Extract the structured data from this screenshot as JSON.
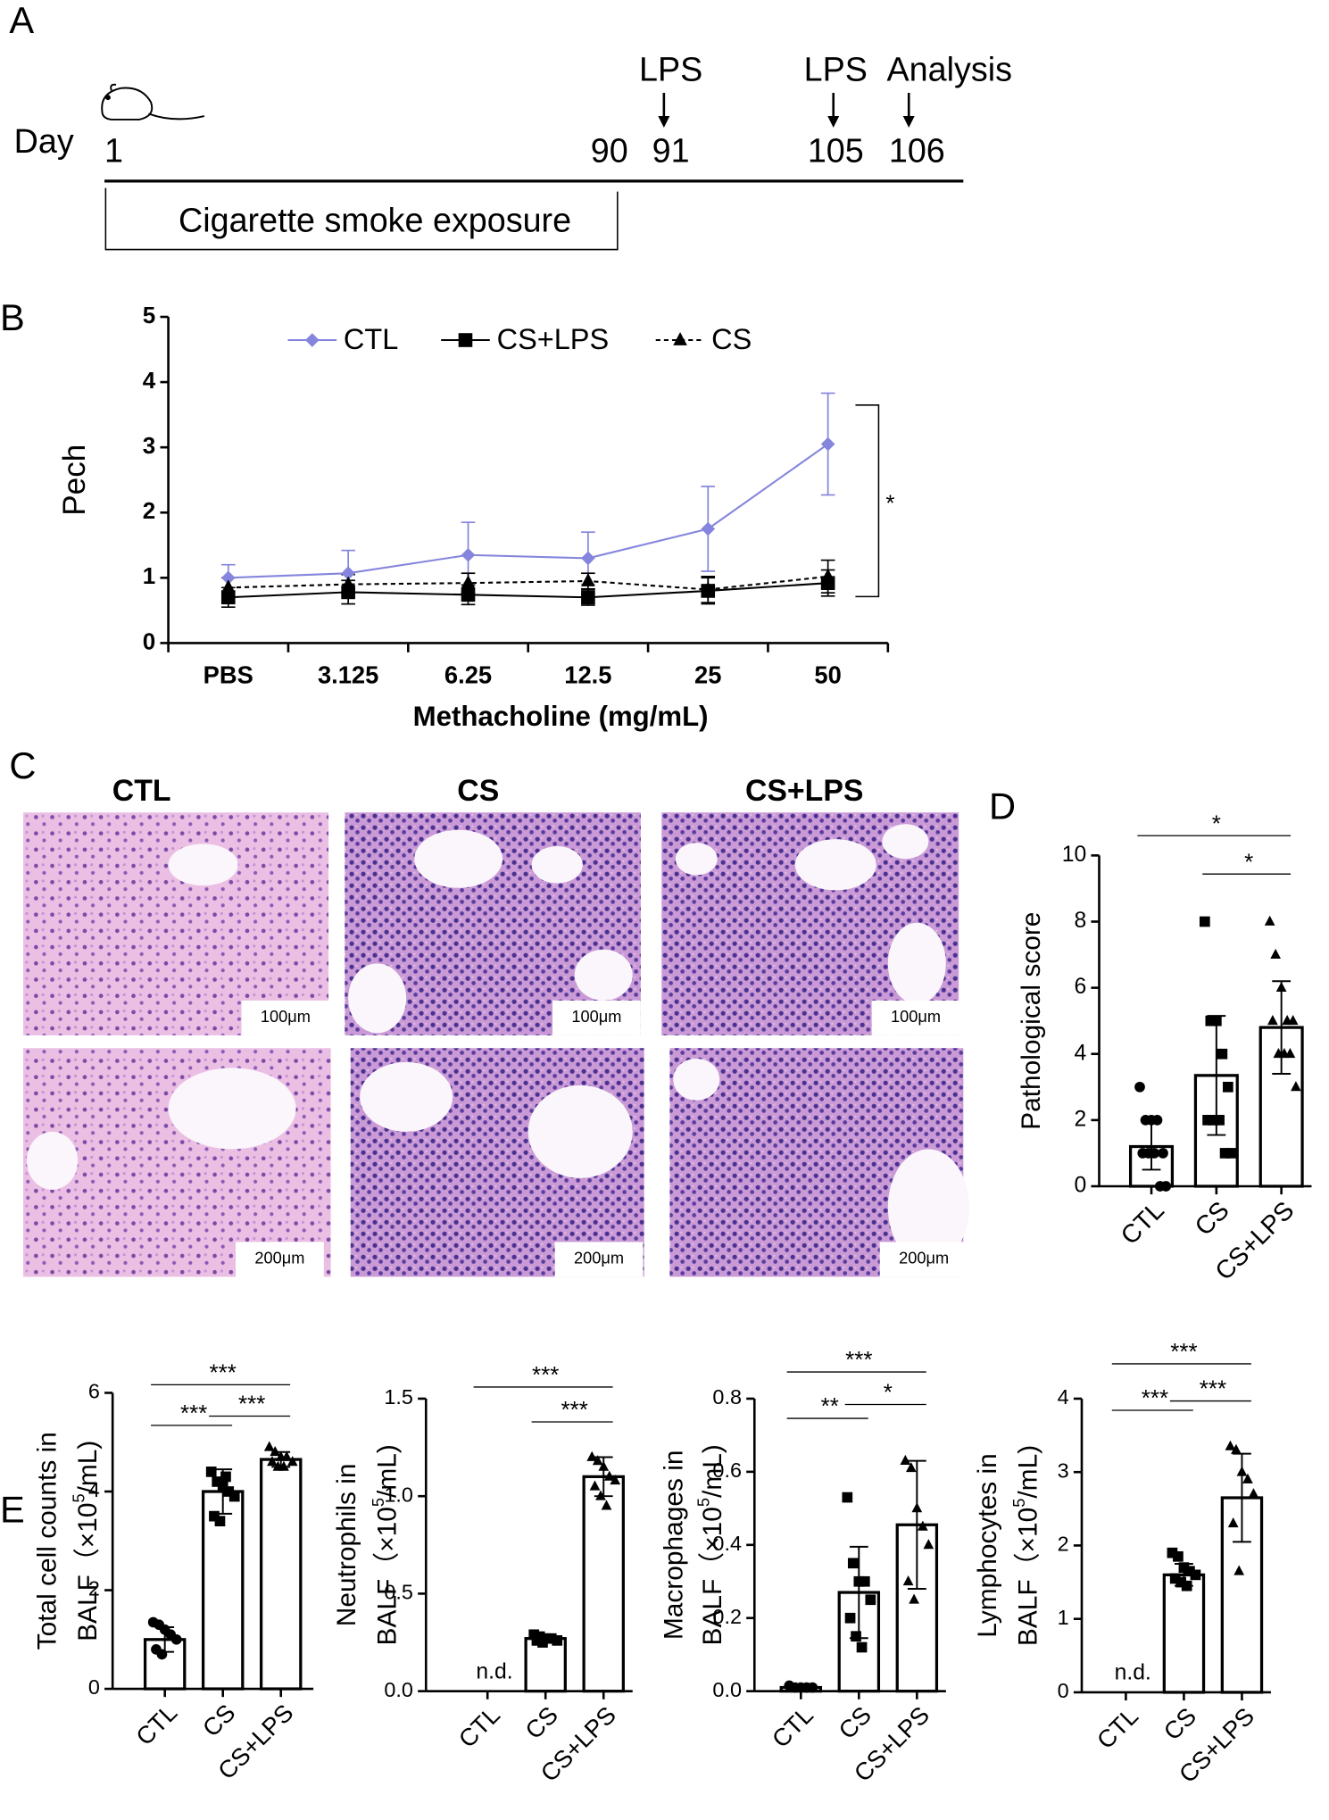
{
  "panel_labels": [
    "A",
    "B",
    "C",
    "D",
    "E"
  ],
  "timeline": {
    "label": "Day",
    "days": [
      "1",
      "90",
      "91",
      "105",
      "106"
    ],
    "events": [
      "LPS",
      "LPS",
      "Analysis"
    ],
    "exposure": "Cigarette smoke exposure"
  },
  "histology": {
    "columns": [
      "CTL",
      "CS",
      "CS+LPS"
    ],
    "scale_bars": [
      "100μm",
      "100μm",
      "100μm",
      "200μm",
      "200μm",
      "200μm"
    ]
  },
  "chart_data": [
    {
      "type": "line",
      "categories": [
        "PBS",
        "3.125",
        "6.25",
        "12.5",
        "25",
        "50"
      ],
      "xlabel": "Methacholine  (mg/mL)",
      "ylabel": "Pech",
      "ylim": [
        0,
        5
      ],
      "yticks": [
        0,
        1,
        2,
        3,
        4,
        5
      ],
      "annotations": [
        "*"
      ],
      "series": [
        {
          "name": "CTL",
          "color": "#8585dd",
          "marker": "diamond",
          "linestyle": "solid",
          "values": [
            1.0,
            1.07,
            1.35,
            1.3,
            1.75,
            3.05
          ],
          "errors": [
            0.2,
            0.35,
            0.5,
            0.4,
            0.65,
            0.78
          ]
        },
        {
          "name": "CS+LPS",
          "color": "#000000",
          "marker": "square",
          "linestyle": "solid",
          "values": [
            0.7,
            0.78,
            0.74,
            0.7,
            0.8,
            0.92
          ],
          "errors": [
            0.15,
            0.18,
            0.15,
            0.12,
            0.2,
            0.2
          ]
        },
        {
          "name": "CS",
          "color": "#000000",
          "marker": "triangle",
          "linestyle": "dashed",
          "values": [
            0.85,
            0.9,
            0.92,
            0.95,
            0.82,
            1.02
          ],
          "errors": [
            0.15,
            0.15,
            0.15,
            0.12,
            0.2,
            0.25
          ]
        }
      ]
    },
    {
      "type": "bar",
      "categories": [
        "CTL",
        "CS",
        "CS+LPS"
      ],
      "ylabel": "Pathological score",
      "ylim": [
        0,
        10
      ],
      "yticks": [
        0,
        2,
        4,
        6,
        8,
        10
      ],
      "values": [
        1.2,
        3.35,
        4.8
      ],
      "errors": [
        0.7,
        1.8,
        1.4
      ],
      "markers": [
        "circle",
        "square",
        "triangle"
      ],
      "points": [
        [
          3,
          2,
          2,
          2,
          1,
          1,
          1,
          1,
          0,
          0
        ],
        [
          8,
          5,
          5,
          4,
          3,
          2,
          2,
          2,
          1,
          1
        ],
        [
          8,
          7,
          6,
          5,
          5,
          5,
          4,
          4,
          4,
          3
        ]
      ],
      "annotations": [
        "*",
        "*"
      ]
    },
    {
      "type": "bar",
      "categories": [
        "CTL",
        "CS",
        "CS+LPS"
      ],
      "ylabel": {
        "line1": "Total cell counts in",
        "line2": [
          "BALF（×10",
          "5",
          "/mL)"
        ]
      },
      "ylim": [
        0,
        6
      ],
      "yticks": [
        0,
        2,
        4,
        6
      ],
      "values": [
        1.0,
        4.0,
        4.65
      ],
      "errors": [
        0.25,
        0.45,
        0.15
      ],
      "markers": [
        "circle",
        "square",
        "triangle"
      ],
      "points": [
        [
          1.35,
          1.3,
          1.2,
          1.1,
          1.0,
          0.8,
          0.7
        ],
        [
          4.4,
          4.2,
          4.1,
          4.0,
          3.9,
          3.5,
          3.4,
          4.3
        ],
        [
          4.9,
          4.8,
          4.7,
          4.7,
          4.6,
          4.6,
          4.5,
          4.5
        ]
      ],
      "annotations": [
        "***",
        "***",
        "***"
      ]
    },
    {
      "type": "bar",
      "categories": [
        "CTL",
        "CS",
        "CS+LPS"
      ],
      "ylabel": {
        "line1": "Neutrophils in",
        "line2": [
          "BALF（×10",
          "5",
          "/mL)"
        ]
      },
      "ylim": [
        0,
        1.5
      ],
      "yticks": [
        {
          "value": 0,
          "label": "0.0"
        },
        0.5,
        {
          "value": 1,
          "label": "1.0"
        },
        1.5
      ],
      "values": [
        null,
        0.27,
        1.1
      ],
      "value_labels": [
        "n.d.",
        null,
        null
      ],
      "errors": [
        null,
        0.02,
        0.1
      ],
      "markers": [
        "circle",
        "square",
        "triangle"
      ],
      "points": [
        [],
        [
          0.29,
          0.28,
          0.27,
          0.27,
          0.26,
          0.26,
          0.25
        ],
        [
          1.2,
          1.18,
          1.15,
          1.1,
          1.08,
          1.05,
          1.0,
          0.95
        ]
      ],
      "annotations": [
        "***",
        "***"
      ]
    },
    {
      "type": "bar",
      "categories": [
        "CTL",
        "CS",
        "CS+LPS"
      ],
      "ylabel": {
        "line1": "Macrophages  in",
        "line2": [
          "BALF（×10",
          "5",
          "/mL)"
        ]
      },
      "ylim": [
        0,
        0.8
      ],
      "yticks": [
        {
          "value": 0,
          "label": "0.0"
        },
        0.2,
        0.4,
        0.6,
        0.8
      ],
      "values": [
        0.01,
        0.27,
        0.455
      ],
      "errors": [
        0.005,
        0.125,
        0.175
      ],
      "markers": [
        "circle",
        "square",
        "triangle"
      ],
      "points": [
        [
          0.015,
          0.01,
          0.01,
          0.01,
          0.01
        ],
        [
          0.53,
          0.35,
          0.3,
          0.3,
          0.25,
          0.2,
          0.15,
          0.12
        ],
        [
          0.63,
          0.61,
          0.5,
          0.45,
          0.4,
          0.3,
          0.25
        ]
      ],
      "annotations": [
        "***",
        "**",
        "*"
      ]
    },
    {
      "type": "bar",
      "categories": [
        "CTL",
        "CS",
        "CS+LPS"
      ],
      "ylabel": {
        "line1": "Lymphocytes  in",
        "line2": [
          "BALF（×10",
          "5",
          "/mL)"
        ]
      },
      "ylim": [
        0,
        4
      ],
      "yticks": [
        0,
        1,
        2,
        3,
        4
      ],
      "values": [
        null,
        1.6,
        2.65
      ],
      "value_labels": [
        "n.d.",
        null,
        null
      ],
      "errors": [
        null,
        0.15,
        0.6
      ],
      "markers": [
        "circle",
        "square",
        "triangle"
      ],
      "points": [
        [],
        [
          1.9,
          1.85,
          1.7,
          1.65,
          1.6,
          1.55,
          1.5,
          1.45
        ],
        [
          3.35,
          3.3,
          3.0,
          2.9,
          2.7,
          2.3,
          1.65
        ]
      ],
      "annotations": [
        "***",
        "***",
        "***"
      ]
    }
  ]
}
